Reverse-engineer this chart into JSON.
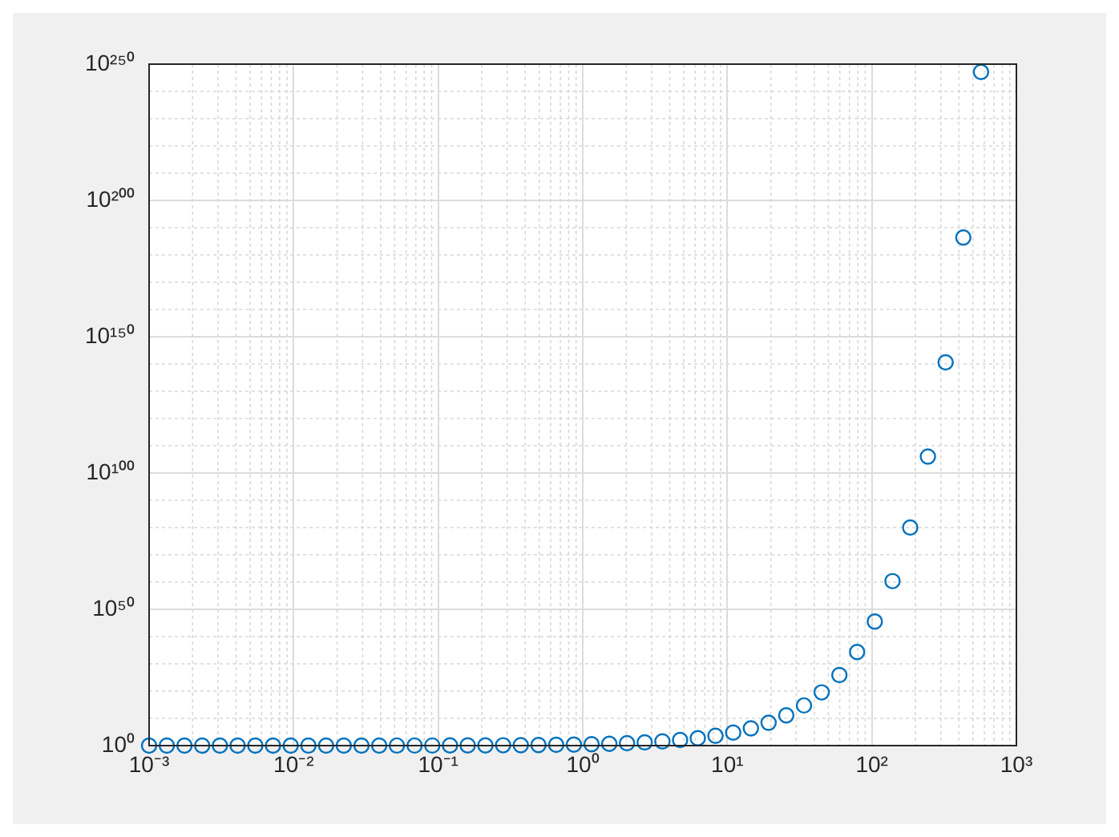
{
  "chart_data": {
    "type": "scatter",
    "log": "xy",
    "grid": true,
    "marker": "circle",
    "legend": false,
    "xlim": [
      0.001,
      1000
    ],
    "ylim": [
      1,
      1e+250
    ],
    "xticks": [
      {
        "value": 0.001,
        "label": "10⁻³"
      },
      {
        "value": 0.01,
        "label": "10⁻²"
      },
      {
        "value": 0.1,
        "label": "10⁻¹"
      },
      {
        "value": 1,
        "label": "10⁰"
      },
      {
        "value": 10,
        "label": "10¹"
      },
      {
        "value": 100,
        "label": "10²"
      },
      {
        "value": 1000,
        "label": "10³"
      }
    ],
    "yticks": [
      {
        "value": 1,
        "label": "10⁰"
      },
      {
        "value": 1e+50,
        "label": "10⁵⁰"
      },
      {
        "value": 1e+100,
        "label": "10¹⁰⁰"
      },
      {
        "value": 1e+150,
        "label": "10¹⁵⁰"
      },
      {
        "value": 1e+200,
        "label": "10²⁰⁰"
      },
      {
        "value": 1e+250,
        "label": "10²⁵⁰"
      }
    ],
    "series": [
      {
        "color": "#0072bd",
        "x": [
          0.001,
          0.001326,
          0.001758,
          0.00233,
          0.003089,
          0.004095,
          0.005429,
          0.007197,
          0.009541,
          0.01265,
          0.01677,
          0.02223,
          0.02947,
          0.03907,
          0.05179,
          0.06866,
          0.09103,
          0.1207,
          0.16,
          0.2121,
          0.2812,
          0.3728,
          0.4942,
          0.6551,
          0.8685,
          1.1514,
          1.5264,
          2.0236,
          2.6827,
          3.5565,
          4.7149,
          6.2506,
          8.2864,
          10.985,
          14.563,
          19.307,
          25.595,
          33.932,
          44.984,
          59.636,
          79.06,
          104.81,
          138.95,
          184.21,
          244.21,
          323.75,
          429.19,
          568.99
        ],
        "values": [
          1.001,
          1.001,
          1.002,
          1.002,
          1.003,
          1.004,
          1.005,
          1.007,
          1.01,
          1.013,
          1.017,
          1.022,
          1.03,
          1.04,
          1.053,
          1.071,
          1.095,
          1.128,
          1.174,
          1.236,
          1.325,
          1.452,
          1.639,
          1.925,
          2.383,
          3.163,
          4.601,
          7.565,
          14.63,
          35.05,
          111.6,
          518.4,
          3972,
          59000.0,
          2110000.0,
          243000000.0,
          131000000000.0,
          545000000000000.0,
          3.44e+19,
          7.94e+25,
          2.16e+34,
          3.3e+45,
          2.2e+60,
          1e+80,
          1.1e+106,
          4e+140,
          2.5e+186,
          1.3e+247
        ]
      }
    ]
  }
}
